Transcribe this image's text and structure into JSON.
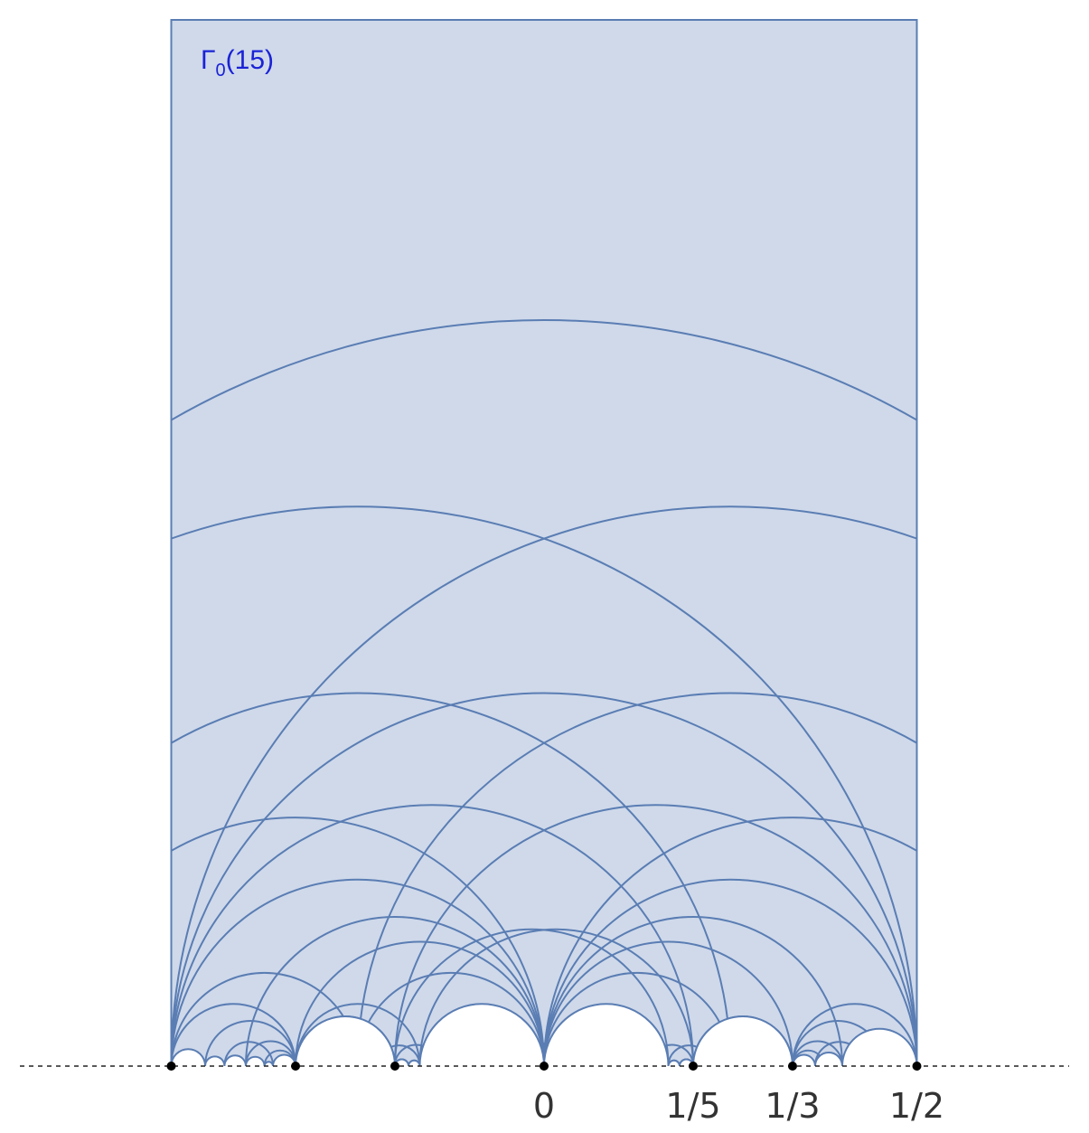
{
  "title": {
    "symbol": "Γ",
    "subscript": "0",
    "argument": "(15)"
  },
  "x_labels": [
    {
      "x": 0,
      "text": "0"
    },
    {
      "x": 0.2,
      "text": "1/5"
    },
    {
      "x": 0.3333,
      "text": "1/3"
    },
    {
      "x": 0.5,
      "text": "1/2"
    }
  ],
  "cusps": [
    -0.5,
    -0.3333,
    -0.2,
    0,
    0.2,
    0.3333,
    0.5
  ],
  "colors": {
    "fill": "#cfd9ea",
    "stroke": "#5a7db3",
    "title": "#1a22d6",
    "points": "#000000"
  }
}
